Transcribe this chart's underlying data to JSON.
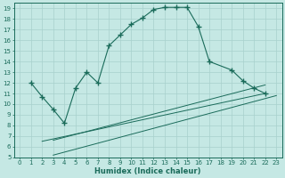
{
  "xlabel": "Humidex (Indice chaleur)",
  "bg_color": "#c5e8e4",
  "grid_color": "#a8d0cc",
  "line_color": "#1a6b5a",
  "xlim": [
    -0.5,
    23.5
  ],
  "ylim": [
    5,
    19.5
  ],
  "xticks": [
    0,
    1,
    2,
    3,
    4,
    5,
    6,
    7,
    8,
    9,
    10,
    11,
    12,
    13,
    14,
    15,
    16,
    17,
    18,
    19,
    20,
    21,
    22,
    23
  ],
  "yticks": [
    5,
    6,
    7,
    8,
    9,
    10,
    11,
    12,
    13,
    14,
    15,
    16,
    17,
    18,
    19
  ],
  "curve1_x": [
    1,
    2,
    3,
    4,
    5,
    6,
    7,
    8,
    9,
    10,
    11,
    12,
    13,
    14,
    15,
    16,
    17,
    19,
    20,
    21,
    22
  ],
  "curve1_y": [
    12,
    10.7,
    9.5,
    8.2,
    11.5,
    13.0,
    12.0,
    15.5,
    16.5,
    17.5,
    18.1,
    18.9,
    19.1,
    19.1,
    19.1,
    17.3,
    14.0,
    13.2,
    12.2,
    11.5,
    11.0
  ],
  "line2_x": [
    2,
    22
  ],
  "line2_y": [
    6.5,
    11.0
  ],
  "line3_x": [
    3,
    23
  ],
  "line3_y": [
    5.2,
    10.8
  ],
  "line4_x": [
    3,
    22
  ],
  "line4_y": [
    6.6,
    11.8
  ]
}
